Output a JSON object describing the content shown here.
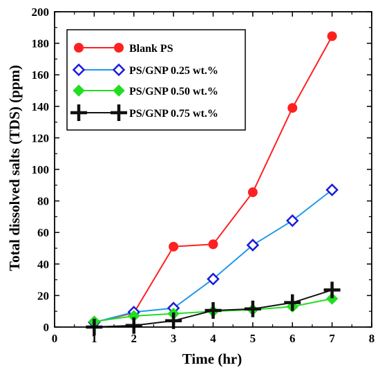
{
  "chart_data": {
    "type": "line",
    "title": "",
    "xlabel": "Time (hr)",
    "ylabel": "Total dissolved salts (TDS) (ppm)",
    "xlim": [
      0,
      8
    ],
    "ylim": [
      0,
      200
    ],
    "xticks": [
      0,
      1,
      2,
      3,
      4,
      5,
      6,
      7,
      8
    ],
    "yticks": [
      0,
      20,
      40,
      60,
      80,
      100,
      120,
      140,
      160,
      180,
      200
    ],
    "grid": false,
    "legend_position": "top-left",
    "x": [
      1,
      2,
      3,
      4,
      5,
      6,
      7
    ],
    "series": [
      {
        "name": "Blank PS",
        "color": "#ff2020",
        "marker": "filled-circle",
        "values": [
          3,
          9,
          51,
          52.5,
          85.5,
          139,
          184.5
        ]
      },
      {
        "name": "PS/GNP 0.25 wt.%",
        "color": "#1f9ae6",
        "marker_color": "#1a1adb",
        "marker": "open-diamond",
        "values": [
          3,
          9.5,
          12,
          30.5,
          52,
          67.5,
          87
        ]
      },
      {
        "name": "PS/GNP 0.50 wt.%",
        "color": "#22dd22",
        "marker": "filled-diamond",
        "values": [
          3.5,
          7,
          8.5,
          10,
          11,
          13,
          18
        ]
      },
      {
        "name": "PS/GNP 0.75 wt.%",
        "color": "#111111",
        "marker": "plus",
        "values": [
          0,
          1,
          4,
          10.5,
          11.5,
          15.5,
          23.5
        ]
      }
    ]
  }
}
